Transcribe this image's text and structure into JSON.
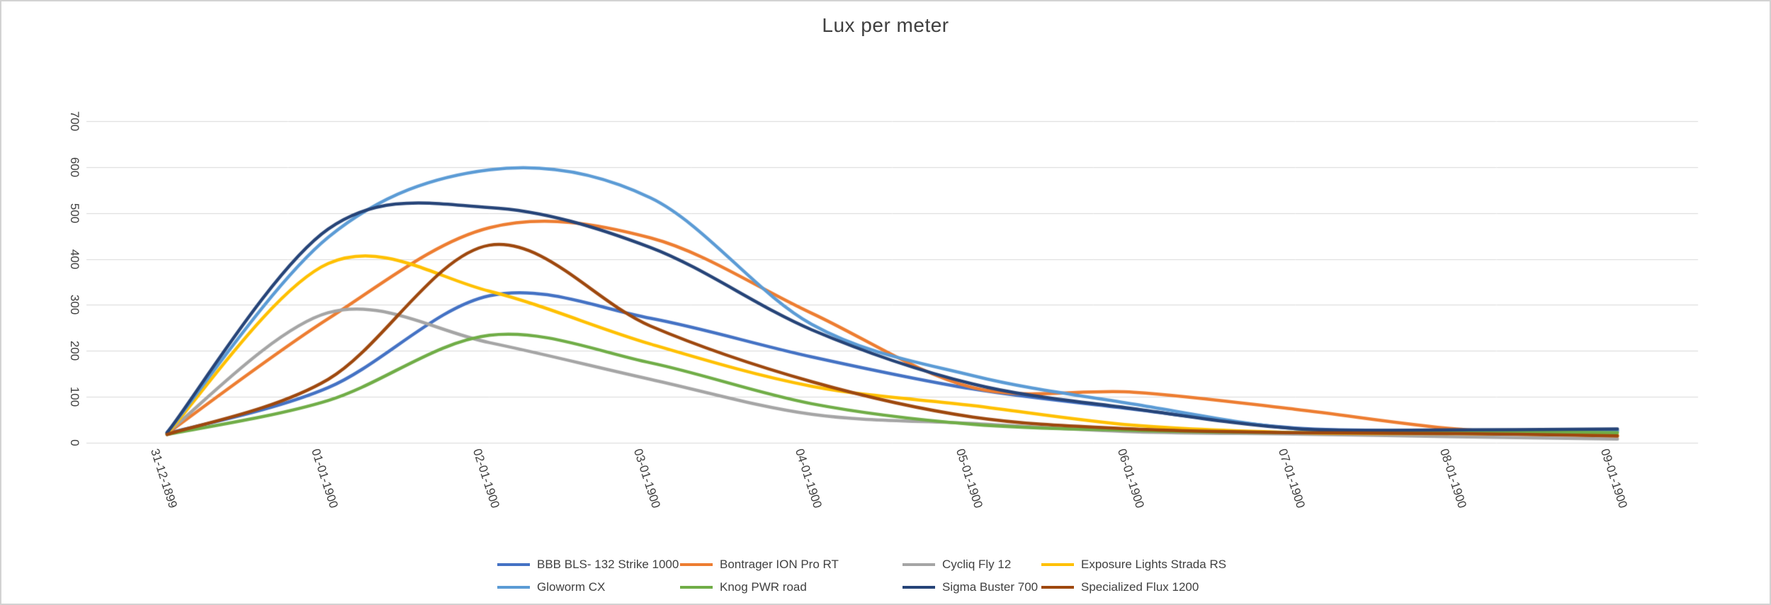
{
  "chart_data": {
    "type": "line",
    "smooth": true,
    "title": "Lux per meter",
    "xlabel": "",
    "ylabel": "",
    "ylim": [
      0,
      700
    ],
    "yticks": [
      0,
      100,
      200,
      300,
      400,
      500,
      600,
      700
    ],
    "grid": "horizontal",
    "legend_position": "bottom",
    "categories": [
      "31-12-1899",
      "01-01-1900",
      "02-01-1900",
      "03-01-1900",
      "04-01-1900",
      "05-01-1900",
      "06-01-1900",
      "07-01-1900",
      "08-01-1900",
      "09-01-1900"
    ],
    "series": [
      {
        "name": "BBB BLS- 132 Strike 1000",
        "color": "#4472C4",
        "values": [
          20,
          120,
          320,
          271,
          187,
          117,
          73,
          32,
          27,
          27
        ]
      },
      {
        "name": "Bontrager ION Pro RT",
        "color": "#ED7D31",
        "values": [
          20,
          270,
          468,
          446,
          282,
          120,
          110,
          73,
          30,
          14
        ]
      },
      {
        "name": "Cycliq Fly 12",
        "color": "#A5A5A5",
        "values": [
          22,
          283,
          218,
          138,
          62,
          42,
          24,
          19,
          13,
          8
        ]
      },
      {
        "name": "Exposure Lights Strada RS",
        "color": "#FFC000",
        "values": [
          20,
          390,
          330,
          215,
          123,
          81,
          38,
          22,
          20,
          17
        ]
      },
      {
        "name": "Gloworm CX",
        "color": "#5B9BD5",
        "values": [
          22,
          447,
          594,
          533,
          258,
          146,
          84,
          31,
          26,
          25
        ]
      },
      {
        "name": "Knog PWR road",
        "color": "#70AD47",
        "values": [
          18,
          92,
          234,
          174,
          85,
          40,
          27,
          22,
          24,
          22
        ]
      },
      {
        "name": "Sigma Buster 700",
        "color": "#264478",
        "values": [
          22,
          465,
          512,
          425,
          246,
          128,
          74,
          31,
          28,
          30
        ]
      },
      {
        "name": "Specialized Flux 1200",
        "color": "#9E480E",
        "values": [
          18,
          138,
          430,
          254,
          133,
          56,
          30,
          22,
          20,
          15
        ]
      }
    ],
    "style": {
      "grid_color": "#D9D9D9",
      "axis_line_color": "#D9D9D9",
      "text_color": "#404040"
    }
  }
}
